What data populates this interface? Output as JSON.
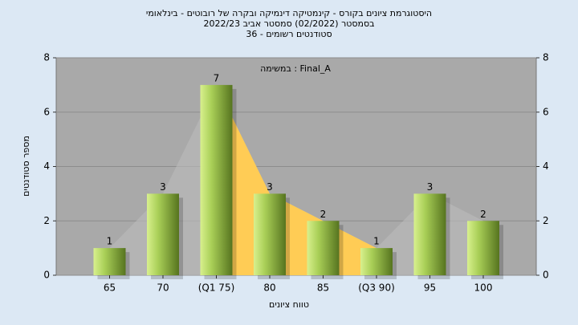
{
  "chart_data": {
    "type": "bar",
    "title": "היסטוגרמת ציונים בקורס - קינמטיקה דינמיקה ובקרה של רובוטים - בינלאומי",
    "subtitle": "בסמסטר  (02/2022)  סמסטר אביב 2022/23",
    "subtitle2": "סטודנטים רשומים - 36",
    "annotation": "במשימה : Final_A",
    "xlabel": "טווח ציונים",
    "ylabel": "מספר סטודנטים",
    "categories": [
      "65",
      "70",
      "(Q1 75)",
      "80",
      "85",
      "(Q3 90)",
      "95",
      "100"
    ],
    "values": [
      1,
      3,
      7,
      3,
      2,
      1,
      3,
      2
    ],
    "color": "#8fb53c",
    "ylim": [
      0,
      8
    ],
    "yticks": [
      0,
      2,
      4,
      6,
      8
    ],
    "y2lim": [
      0,
      8
    ],
    "y2ticks": [
      0,
      2,
      4,
      6,
      8
    ],
    "grid": true
  }
}
